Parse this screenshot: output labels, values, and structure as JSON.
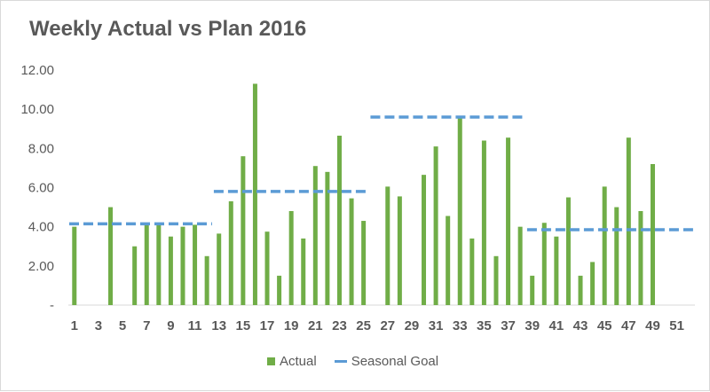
{
  "chart_data": {
    "type": "bar",
    "title": "Weekly Actual vs Plan 2016",
    "xlabel": "",
    "ylabel": "",
    "ylim": [
      0,
      12
    ],
    "y_ticks": [
      0,
      2,
      4,
      6,
      8,
      10,
      12
    ],
    "y_tick_labels": [
      "-",
      "2.00",
      "4.00",
      "6.00",
      "8.00",
      "10.00",
      "12.00"
    ],
    "x_tick_labels": [
      "1",
      "3",
      "5",
      "7",
      "9",
      "11",
      "13",
      "15",
      "17",
      "19",
      "21",
      "23",
      "25",
      "27",
      "29",
      "31",
      "33",
      "35",
      "37",
      "39",
      "41",
      "43",
      "45",
      "47",
      "49",
      "51"
    ],
    "grid": false,
    "legend_position": "bottom",
    "categories": [
      1,
      2,
      3,
      4,
      5,
      6,
      7,
      8,
      9,
      10,
      11,
      12,
      13,
      14,
      15,
      16,
      17,
      18,
      19,
      20,
      21,
      22,
      23,
      24,
      25,
      26,
      27,
      28,
      29,
      30,
      31,
      32,
      33,
      34,
      35,
      36,
      37,
      38,
      39,
      40,
      41,
      42,
      43,
      44,
      45,
      46,
      47,
      48,
      49,
      50,
      51,
      52
    ],
    "series": [
      {
        "name": "Actual",
        "type": "bar",
        "color": "#70ad47",
        "values": [
          4.0,
          null,
          null,
          5.0,
          null,
          3.0,
          4.2,
          4.2,
          3.5,
          4.0,
          4.1,
          2.5,
          3.65,
          5.3,
          7.6,
          11.3,
          3.75,
          1.5,
          4.8,
          3.4,
          7.1,
          6.8,
          8.65,
          5.45,
          4.3,
          null,
          6.05,
          5.55,
          null,
          6.65,
          8.1,
          4.55,
          9.65,
          3.4,
          8.4,
          2.5,
          8.55,
          4.0,
          1.5,
          4.2,
          3.5,
          5.5,
          1.5,
          2.2,
          6.05,
          5.0,
          8.55,
          4.8,
          7.2,
          null,
          null,
          null
        ]
      },
      {
        "name": "Seasonal Goal",
        "type": "line",
        "style": "dashed",
        "color": "#5b9bd5",
        "segments": [
          {
            "from_week": 1,
            "to_week": 12,
            "value": 4.15
          },
          {
            "from_week": 13,
            "to_week": 25,
            "value": 5.8
          },
          {
            "from_week": 26,
            "to_week": 38,
            "value": 9.6
          },
          {
            "from_week": 39,
            "to_week": 52,
            "value": 3.85
          }
        ]
      }
    ]
  }
}
